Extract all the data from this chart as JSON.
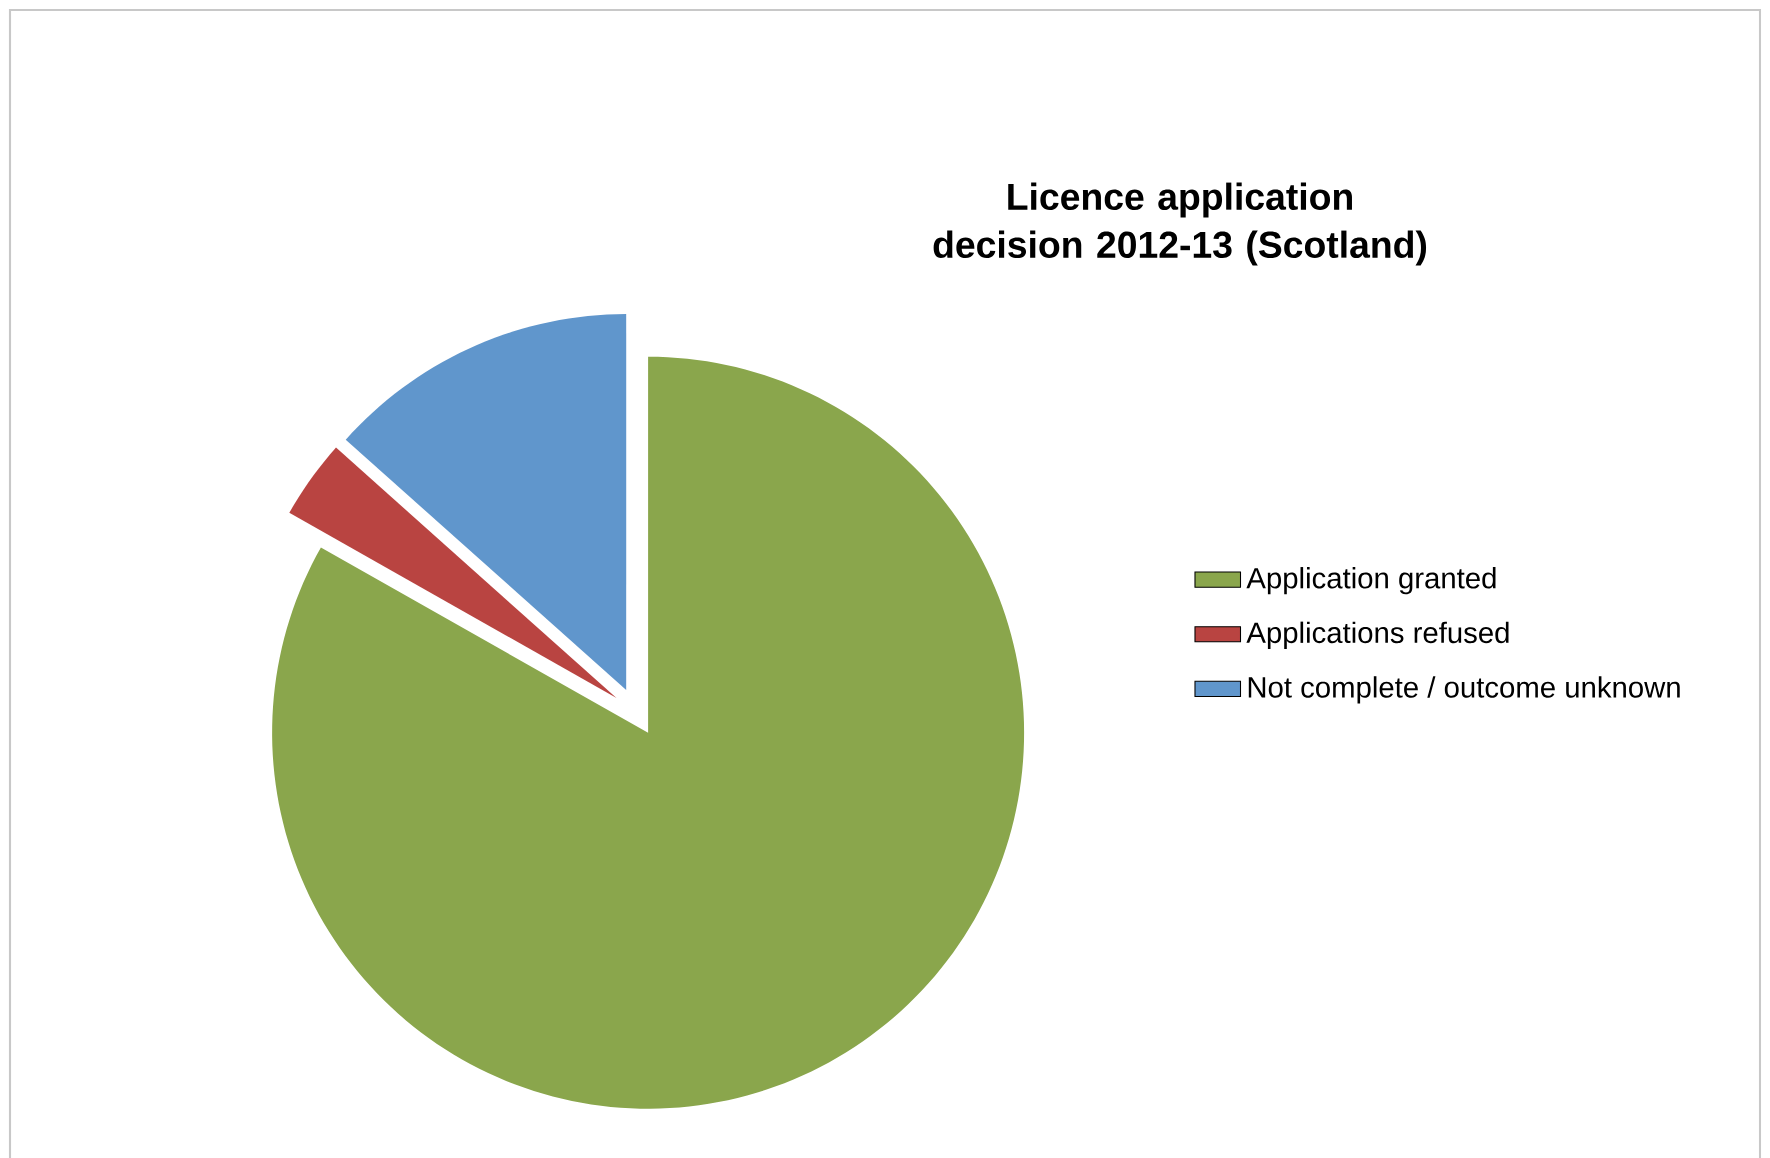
{
  "chart_data": {
    "type": "pie",
    "title": "Licence application decision 2012-13 (Scotland)",
    "categories": [
      "Application granted",
      "Applications refused",
      "Not complete / outcome unknown"
    ],
    "values": [
      83.2,
      3.4,
      13.4
    ],
    "colors": [
      "#8aa64c",
      "#b94441",
      "#6096cc"
    ],
    "legend": "right"
  }
}
